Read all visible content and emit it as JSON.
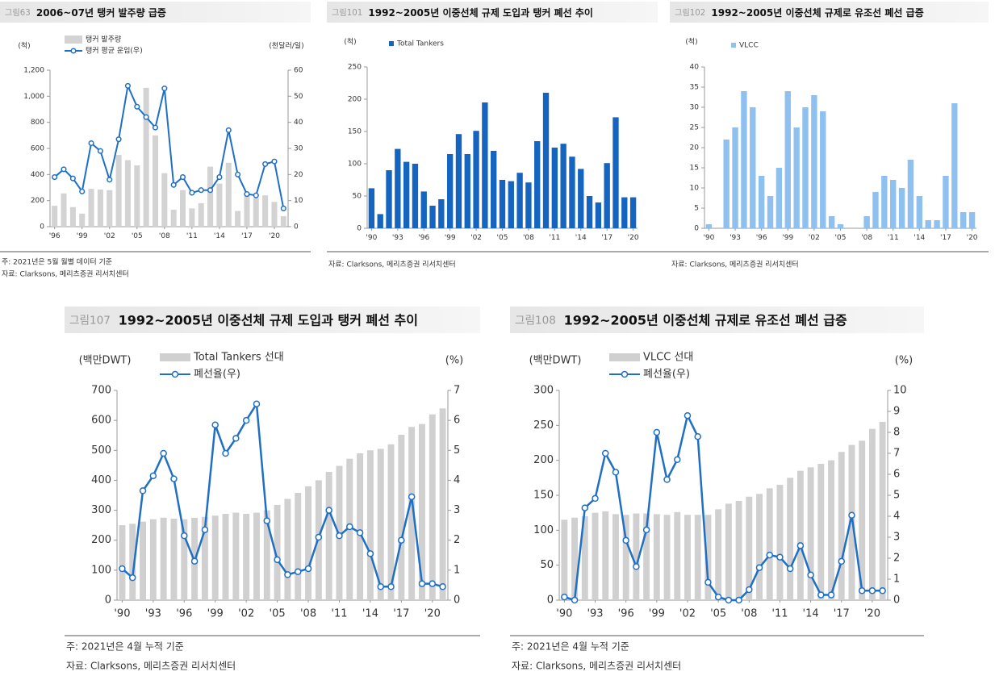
{
  "chart_data": [
    {
      "type": "combo",
      "figure_label": "그림63",
      "title": "2006~07년 탱커 발주량 급증",
      "y_label": "(척)",
      "y2_label": "(천달러/일)",
      "categories": [
        "'96",
        null,
        null,
        "'99",
        null,
        null,
        "'02",
        null,
        null,
        "'05",
        null,
        null,
        "'08",
        null,
        null,
        "'11",
        null,
        null,
        "'14",
        null,
        null,
        "'17",
        null,
        null,
        "'20",
        null
      ],
      "series": [
        {
          "name": "탱커 발주량",
          "type": "bar",
          "color": "#d3d3d3",
          "values": [
            160,
            255,
            150,
            100,
            290,
            285,
            280,
            550,
            510,
            470,
            1065,
            700,
            410,
            130,
            280,
            140,
            180,
            460,
            330,
            490,
            120,
            250,
            220,
            240,
            190,
            80
          ]
        },
        {
          "name": "탱커 평균 운임(우)",
          "type": "line",
          "axis": "y2",
          "color": "#1f6fc5",
          "values": [
            19,
            22,
            18.5,
            13.5,
            32,
            29,
            18,
            33.5,
            54,
            46,
            42,
            38,
            53,
            16,
            19,
            13,
            14,
            14,
            19,
            37,
            20,
            12.5,
            12,
            24,
            25,
            7
          ]
        }
      ],
      "ylim": [
        0,
        1200
      ],
      "yticks": [
        0,
        200,
        400,
        600,
        800,
        {
          "value": 1000,
          "label": "1,000"
        },
        {
          "value": 1200,
          "label": "1,200"
        }
      ],
      "y2lim": [
        0,
        60
      ],
      "y2ticks": [
        0,
        10,
        20,
        30,
        40,
        50,
        60
      ],
      "notes": [
        "주: 2021년은 5월 월별 데이터 기준",
        "자료: Clarksons, 메리츠증권 리서치센터"
      ]
    },
    {
      "type": "bar",
      "figure_label": "그림101",
      "title": "1992~2005년 이중선체 규제 도입과 탱커 폐선 추이",
      "y_label": "(척)",
      "categories": [
        "'90",
        null,
        null,
        "'93",
        null,
        null,
        "'96",
        null,
        null,
        "'99",
        null,
        null,
        "'02",
        null,
        null,
        "'05",
        null,
        null,
        "'08",
        null,
        null,
        "'11",
        null,
        null,
        "'14",
        null,
        null,
        "'17",
        null,
        null,
        "'20"
      ],
      "series": [
        {
          "name": "Total Tankers",
          "type": "bar",
          "color": "#1565c0",
          "values": [
            62,
            22,
            90,
            123,
            103,
            100,
            57,
            35,
            45,
            115,
            146,
            115,
            151,
            195,
            120,
            75,
            73,
            86,
            71,
            135,
            210,
            125,
            131,
            111,
            92,
            50,
            40,
            101,
            172,
            48,
            48
          ]
        }
      ],
      "ylim": [
        0,
        250
      ],
      "yticks": [
        0,
        50,
        100,
        150,
        200,
        250
      ],
      "notes": [
        "자료: Clarksons, 메리츠증권 리서치센터"
      ]
    },
    {
      "type": "bar",
      "figure_label": "그림102",
      "title": "1992~2005년 이중선체 규제로 유조선 폐선 급증",
      "y_label": "(척)",
      "categories": [
        "'90",
        null,
        null,
        "'93",
        null,
        null,
        "'96",
        null,
        null,
        "'99",
        null,
        null,
        "'02",
        null,
        null,
        "'05",
        null,
        null,
        "'08",
        null,
        null,
        "'11",
        null,
        null,
        "'14",
        null,
        null,
        "'17",
        null,
        null,
        "'20"
      ],
      "series": [
        {
          "name": "VLCC",
          "type": "bar",
          "color": "#8fc1f0",
          "values": [
            1,
            0,
            22,
            25,
            34,
            30,
            13,
            8,
            15,
            34,
            25,
            30,
            33,
            29,
            3,
            1,
            0,
            0,
            3,
            9,
            13,
            12,
            10,
            17,
            8,
            2,
            2,
            13,
            31,
            4,
            4
          ]
        }
      ],
      "ylim": [
        0,
        40
      ],
      "yticks": [
        0,
        5,
        10,
        15,
        20,
        25,
        30,
        35,
        40
      ],
      "notes": [
        "자료: Clarksons, 메리츠증권 리서치센터"
      ]
    },
    {
      "type": "combo",
      "figure_label": "그림107",
      "title": "1992~2005년 이중선체 규제 도입과 탱커 폐선 추이",
      "y_label": "(백만DWT)",
      "y2_label": "(%)",
      "categories": [
        "'90",
        null,
        null,
        "'93",
        null,
        null,
        "'96",
        null,
        null,
        "'99",
        null,
        null,
        "'02",
        null,
        null,
        "'05",
        null,
        null,
        "'08",
        null,
        null,
        "'11",
        null,
        null,
        "'14",
        null,
        null,
        "'17",
        null,
        null,
        "'20",
        null
      ],
      "series": [
        {
          "name": "Total Tankers 선대",
          "type": "bar",
          "color": "#d0d0d0",
          "values": [
            250,
            255,
            262,
            270,
            275,
            272,
            270,
            275,
            278,
            282,
            288,
            292,
            288,
            292,
            300,
            318,
            338,
            358,
            380,
            400,
            428,
            448,
            472,
            490,
            500,
            505,
            520,
            552,
            578,
            588,
            620,
            640
          ]
        },
        {
          "name": "폐선율(우)",
          "type": "line",
          "axis": "y2",
          "color": "#1f6fc5",
          "values": [
            1.05,
            0.75,
            3.65,
            4.15,
            4.9,
            4.05,
            2.15,
            1.3,
            2.35,
            5.85,
            4.9,
            5.4,
            6,
            6.55,
            2.65,
            1.35,
            0.85,
            0.95,
            1.05,
            2.1,
            3,
            2.15,
            2.45,
            2.25,
            1.55,
            0.45,
            0.45,
            2,
            3.45,
            0.55,
            0.55,
            0.45
          ]
        }
      ],
      "ylim": [
        0,
        700
      ],
      "yticks": [
        0,
        100,
        200,
        300,
        400,
        500,
        600,
        700
      ],
      "y2lim": [
        0,
        7
      ],
      "y2ticks": [
        0,
        1,
        2,
        3,
        4,
        5,
        6,
        7
      ],
      "notes": [
        "주: 2021년은 4월 누적 기준",
        "자료: Clarksons, 메리츠증권 리서치센터"
      ]
    },
    {
      "type": "combo",
      "figure_label": "그림108",
      "title": "1992~2005년 이중선체 규제로 유조선 폐선 급증",
      "y_label": "(백만DWT)",
      "y2_label": "(%)",
      "categories": [
        "'90",
        null,
        null,
        "'93",
        null,
        null,
        "'96",
        null,
        null,
        "'99",
        null,
        null,
        "'02",
        null,
        null,
        "'05",
        null,
        null,
        "'08",
        null,
        null,
        "'11",
        null,
        null,
        "'14",
        null,
        null,
        "'17",
        null,
        null,
        "'20",
        null
      ],
      "series": [
        {
          "name": "VLCC 선대",
          "type": "bar",
          "color": "#d0d0d0",
          "values": [
            115,
            118,
            120,
            125,
            127,
            123,
            122,
            124,
            124,
            123,
            122,
            126,
            122,
            122,
            122,
            130,
            138,
            142,
            148,
            152,
            160,
            165,
            175,
            185,
            190,
            195,
            200,
            212,
            222,
            228,
            245,
            255
          ]
        },
        {
          "name": "폐선율(우)",
          "type": "line",
          "axis": "y2",
          "color": "#1f6fc5",
          "values": [
            0.15,
            0,
            4.4,
            4.85,
            7,
            6.1,
            2.85,
            1.6,
            3.35,
            8,
            5.75,
            6.7,
            8.8,
            7.8,
            0.85,
            0.15,
            0,
            0,
            0.5,
            1.55,
            2.15,
            2.05,
            1.5,
            2.6,
            1.2,
            0.25,
            0.25,
            1.85,
            4.05,
            0.45,
            0.45,
            0.45
          ]
        }
      ],
      "ylim": [
        0,
        300
      ],
      "yticks": [
        0,
        50,
        100,
        150,
        200,
        250,
        300
      ],
      "y2lim": [
        0,
        10
      ],
      "y2ticks": [
        0,
        1,
        2,
        3,
        4,
        5,
        6,
        7,
        8,
        9,
        10
      ],
      "notes": [
        "주: 2021년은 4월 누적 기준",
        "자료: Clarksons, 메리츠증권 리서치센터"
      ]
    }
  ]
}
